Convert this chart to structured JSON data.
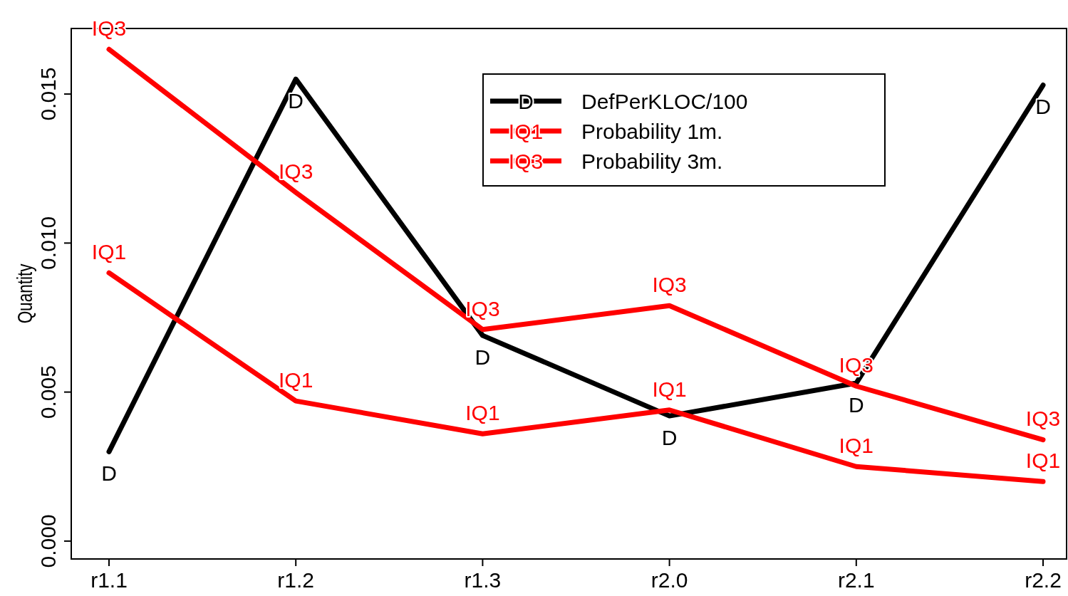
{
  "chart_data": {
    "type": "line",
    "ylabel": "Quantity",
    "categories": [
      "r1.1",
      "r1.2",
      "r1.3",
      "r2.0",
      "r2.1",
      "r2.2"
    ],
    "ylim": [
      -0.0006,
      0.0172
    ],
    "yticks": [
      {
        "value": 0,
        "label": "0.000"
      },
      {
        "value": 0.005,
        "label": "0.005"
      },
      {
        "value": 0.01,
        "label": "0.010"
      },
      {
        "value": 0.015,
        "label": "0.015"
      }
    ],
    "series": [
      {
        "name": "DefPerKLOC/100",
        "color": "#000000",
        "values": [
          0.003,
          0.0155,
          0.0069,
          0.0042,
          0.0053,
          0.0153
        ],
        "value_labels": [
          "D",
          "D",
          "D",
          "D",
          "D",
          "D"
        ]
      },
      {
        "name": "Probability 1m.",
        "color": "#ff0000",
        "values": [
          0.009,
          0.0047,
          0.0036,
          0.0044,
          0.0025,
          0.002
        ],
        "value_labels": [
          "IQ1",
          "IQ1",
          "IQ1",
          "IQ1",
          "IQ1",
          "IQ1"
        ]
      },
      {
        "name": "Probability 3m.",
        "color": "#ff0000",
        "values": [
          0.0165,
          0.0117,
          0.0071,
          0.0079,
          0.0052,
          0.0034
        ],
        "value_labels": [
          "IQ3",
          "IQ3",
          "IQ3",
          "IQ3",
          "IQ3",
          "IQ3"
        ]
      }
    ],
    "legend": "top right",
    "grid": false,
    "marker": "none",
    "line_style": "solid"
  }
}
